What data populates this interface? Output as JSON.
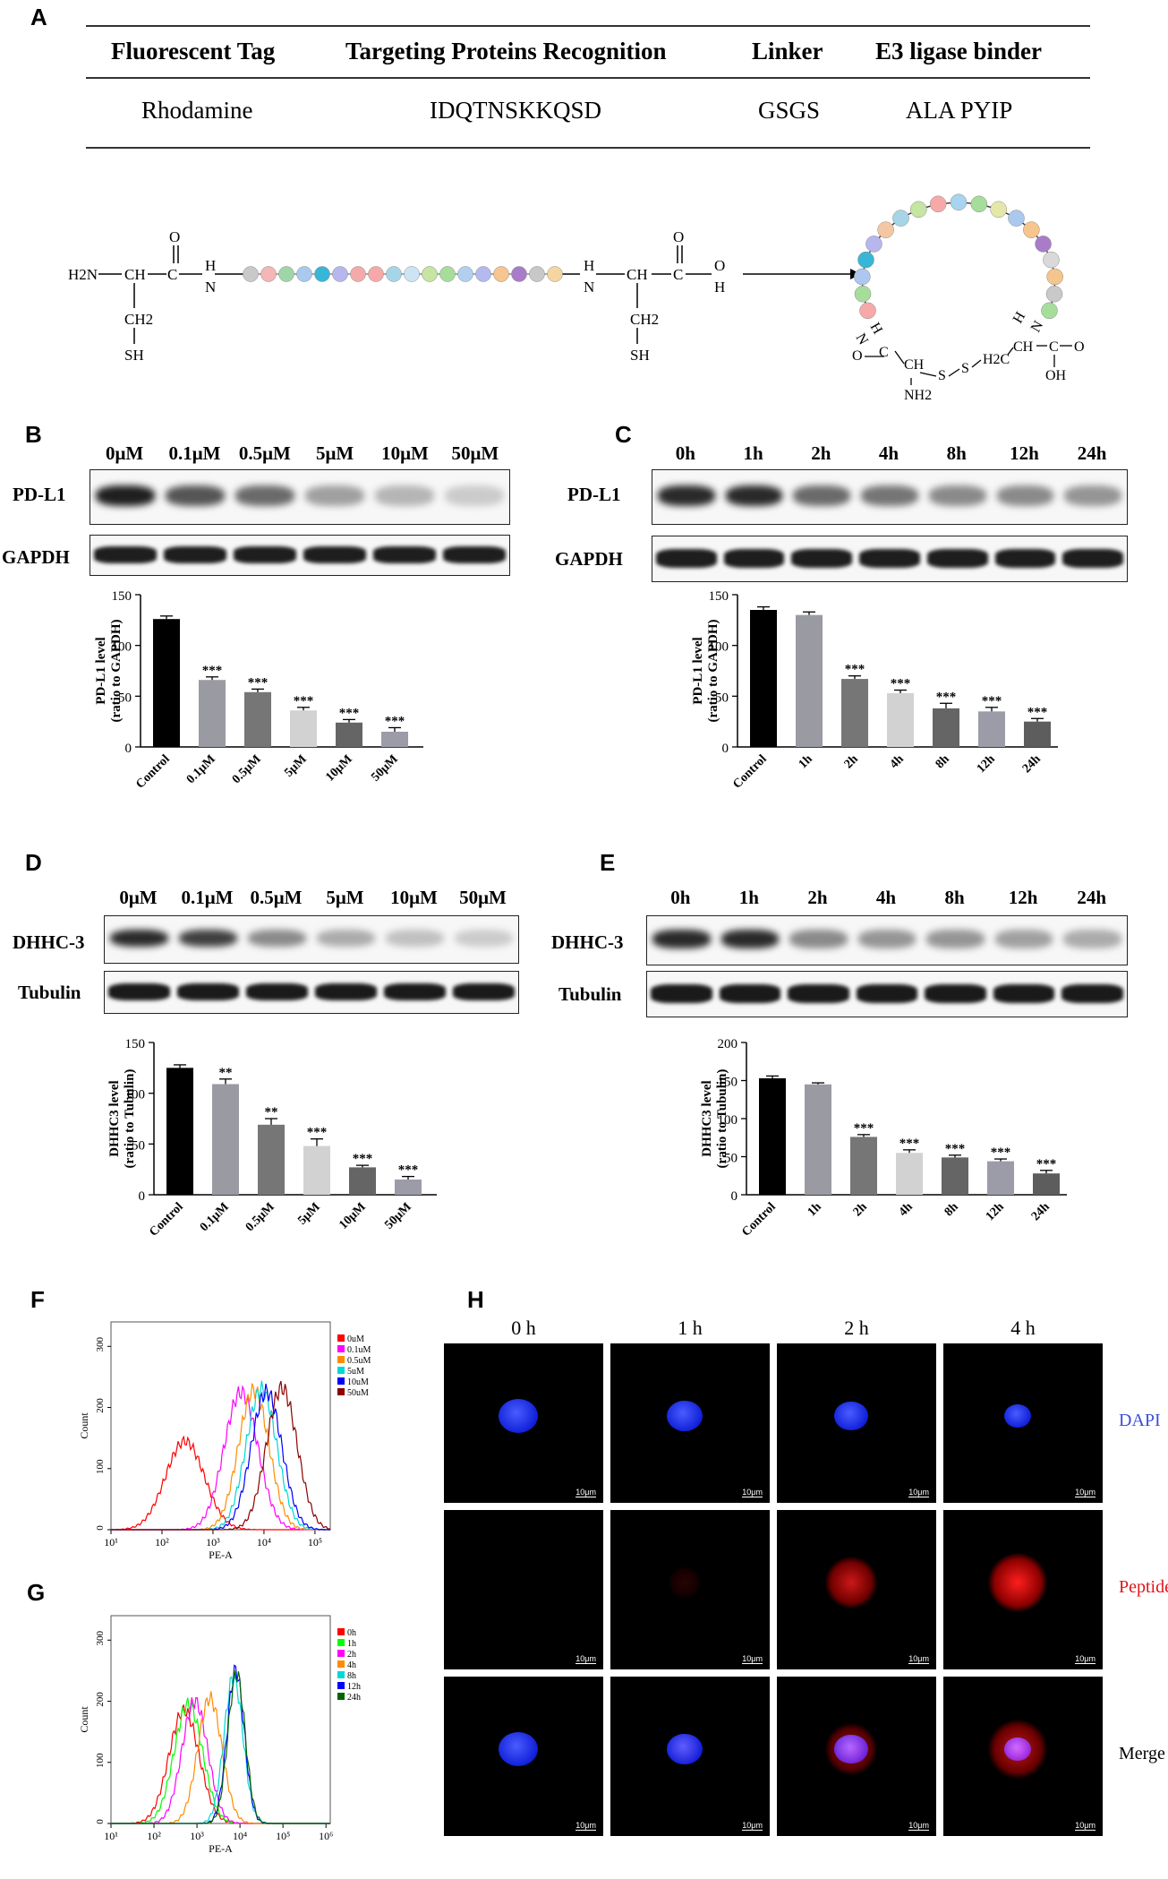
{
  "panel_labels": {
    "A": "A",
    "B": "B",
    "C": "C",
    "D": "D",
    "E": "E",
    "F": "F",
    "G": "G",
    "H": "H"
  },
  "table": {
    "headers": [
      "Fluorescent Tag",
      "Targeting Proteins Recognition",
      "Linker",
      "E3 ligase binder"
    ],
    "values": [
      "Rhodamine",
      "IDQTNSKKQSD",
      "GSGS",
      "ALA  PYIP"
    ]
  },
  "scheme": {
    "left_atoms": {
      "h2n": "H2N",
      "ch": "CH",
      "c": "C",
      "o": "O",
      "h": "H",
      "n": "N",
      "ch2": "CH2",
      "sh": "SH"
    },
    "right_atoms": {
      "h": "H",
      "n": "N",
      "ch": "CH",
      "c": "C",
      "o": "O",
      "oh_h": "H",
      "ch2": "CH2",
      "sh": "SH"
    },
    "cyclic_atoms": {
      "h1": "H",
      "n1": "N",
      "c1": "C",
      "o1": "O",
      "ch1": "CH",
      "nh2": "NH2",
      "s1": "S",
      "s2": "S",
      "h2c": "H2C",
      "ch2": "CH",
      "h2": "H",
      "n2": "N",
      "c2": "C",
      "o2": "O",
      "oh": "OH"
    },
    "bead_colors": [
      "#c9c9c9",
      "#f4b6b6",
      "#9fd6a8",
      "#a9c9ef",
      "#38b6d8",
      "#b7b7ee",
      "#f4aaaa",
      "#f7a9a9",
      "#a7d5e8",
      "#cde4f5",
      "#c6e4a2",
      "#a6dd9a",
      "#b1d0ef",
      "#b4b9f0",
      "#f7c58e",
      "#a87cc9",
      "#c8c8c8",
      "#f5d6a0"
    ],
    "ring_colors": [
      "#f7a9a9",
      "#a6dd9a",
      "#aec7f0",
      "#38b6d8",
      "#b7b7ee",
      "#f4c7a4",
      "#a7d5e8",
      "#c6e4a2",
      "#f7a9a9",
      "#a8d4ef",
      "#a6dd9a",
      "#e4e7a9",
      "#a9c9ef",
      "#f7c58e",
      "#a87cc9",
      "#d9d9d9",
      "#f5c58e",
      "#c9c9c9",
      "#a6dd9a"
    ]
  },
  "panel_B": {
    "lanes": [
      "0μM",
      "0.1μM",
      "0.5μM",
      "5μM",
      "10μM",
      "50μM"
    ],
    "rows": [
      "PD-L1",
      "GAPDH"
    ],
    "target_intensity": [
      0.95,
      0.7,
      0.6,
      0.35,
      0.25,
      0.15
    ]
  },
  "panel_C": {
    "lanes": [
      "0h",
      "1h",
      "2h",
      "4h",
      "8h",
      "12h",
      "24h"
    ],
    "rows": [
      "PD-L1",
      "GAPDH"
    ],
    "target_intensity": [
      0.9,
      0.9,
      0.6,
      0.55,
      0.45,
      0.45,
      0.4
    ]
  },
  "panel_D": {
    "lanes": [
      "0μM",
      "0.1μM",
      "0.5μM",
      "5μM",
      "10μM",
      "50μM"
    ],
    "rows": [
      "DHHC-3",
      "Tubulin"
    ],
    "target_intensity": [
      0.9,
      0.8,
      0.45,
      0.3,
      0.2,
      0.15
    ]
  },
  "panel_E": {
    "lanes": [
      "0h",
      "1h",
      "2h",
      "4h",
      "8h",
      "12h",
      "24h"
    ],
    "rows": [
      "DHHC-3",
      "Tubulin"
    ],
    "target_intensity": [
      0.9,
      0.9,
      0.45,
      0.4,
      0.4,
      0.35,
      0.3
    ]
  },
  "chart_data": [
    {
      "id": "B",
      "type": "bar",
      "categories": [
        "Control",
        "0.1μM",
        "0.5μM",
        "5μM",
        "10μM",
        "50μM"
      ],
      "values": [
        126,
        66,
        54,
        36,
        24,
        15
      ],
      "errors": [
        3,
        3,
        3,
        3,
        3,
        4
      ],
      "sig": [
        "",
        "***",
        "***",
        "***",
        "***",
        "***"
      ],
      "ylabel": "PD-L1 level\n(ratio to GAPDH)",
      "ylim": [
        0,
        150
      ],
      "yticks": [
        0,
        50,
        100,
        150
      ],
      "colors": [
        "#000000",
        "#9a9aa2",
        "#767676",
        "#d2d2d2",
        "#656565",
        "#9c9ca8"
      ]
    },
    {
      "id": "C",
      "type": "bar",
      "categories": [
        "Control",
        "1h",
        "2h",
        "4h",
        "8h",
        "12h",
        "24h"
      ],
      "values": [
        135,
        130,
        67,
        53,
        38,
        35,
        25
      ],
      "errors": [
        3,
        3,
        3,
        3,
        5,
        4,
        3
      ],
      "sig": [
        "",
        "",
        "***",
        "***",
        "***",
        "***",
        "***"
      ],
      "ylabel": "PD-L1 level\n(ratio to GAPDH)",
      "ylim": [
        0,
        150
      ],
      "yticks": [
        0,
        50,
        100,
        150
      ],
      "colors": [
        "#000000",
        "#9a9aa2",
        "#767676",
        "#d2d2d2",
        "#656565",
        "#9c9ca8",
        "#5d5d5d"
      ]
    },
    {
      "id": "D",
      "type": "bar",
      "categories": [
        "Control",
        "0.1μM",
        "0.5μM",
        "5μM",
        "10μM",
        "50μM"
      ],
      "values": [
        125,
        109,
        69,
        48,
        27,
        15
      ],
      "errors": [
        3,
        5,
        6,
        7,
        2,
        3
      ],
      "sig": [
        "",
        "**",
        "**",
        "***",
        "***",
        "***"
      ],
      "ylabel": "DHHC3 level\n(ratio to Tubulin)",
      "ylim": [
        0,
        150
      ],
      "yticks": [
        0,
        50,
        100,
        150
      ],
      "colors": [
        "#000000",
        "#9a9aa2",
        "#767676",
        "#d2d2d2",
        "#656565",
        "#9c9ca8"
      ]
    },
    {
      "id": "E",
      "type": "bar",
      "categories": [
        "Control",
        "1h",
        "2h",
        "4h",
        "8h",
        "12h",
        "24h"
      ],
      "values": [
        153,
        145,
        76,
        55,
        49,
        44,
        28
      ],
      "errors": [
        3,
        2,
        3,
        4,
        3,
        3,
        4
      ],
      "sig": [
        "",
        "",
        "***",
        "***",
        "***",
        "***",
        "***"
      ],
      "ylabel": "DHHC3 level\n(ratio to Tubulin)",
      "ylim": [
        0,
        200
      ],
      "yticks": [
        0,
        50,
        100,
        150,
        200
      ],
      "colors": [
        "#000000",
        "#9a9aa2",
        "#767676",
        "#d2d2d2",
        "#656565",
        "#9c9ca8",
        "#5d5d5d"
      ]
    },
    {
      "id": "F",
      "type": "area",
      "xlabel": "PE-A",
      "ylabel": "Count",
      "xticks": [
        "10¹",
        "10²",
        "10³",
        "10⁴",
        "10⁵"
      ],
      "yticks": [
        0,
        100,
        200,
        300
      ],
      "xlim_log": [
        1,
        5.3
      ],
      "ylim": [
        0,
        340
      ],
      "series": [
        {
          "name": "0uM",
          "color": "#ff0000",
          "peak_log": 2.45,
          "sd": 0.38,
          "height": 145
        },
        {
          "name": "0.1uM",
          "color": "#ff00ff",
          "peak_log": 3.55,
          "sd": 0.33,
          "height": 225
        },
        {
          "name": "0.5uM",
          "color": "#ff8c00",
          "peak_log": 3.8,
          "sd": 0.3,
          "height": 228
        },
        {
          "name": "5uM",
          "color": "#00d7d7",
          "peak_log": 3.95,
          "sd": 0.3,
          "height": 230
        },
        {
          "name": "10uM",
          "color": "#0000ff",
          "peak_log": 4.05,
          "sd": 0.3,
          "height": 226
        },
        {
          "name": "50uM",
          "color": "#8b0000",
          "peak_log": 4.35,
          "sd": 0.3,
          "height": 232
        }
      ]
    },
    {
      "id": "G",
      "type": "area",
      "xlabel": "PE-A",
      "ylabel": "Count",
      "xticks": [
        "10¹",
        "10²",
        "10³",
        "10⁴",
        "10⁵",
        "10⁶"
      ],
      "yticks": [
        0,
        100,
        200,
        300
      ],
      "xlim_log": [
        1,
        6.1
      ],
      "ylim": [
        0,
        340
      ],
      "series": [
        {
          "name": "0h",
          "color": "#ff0000",
          "peak_log": 2.7,
          "sd": 0.35,
          "height": 185
        },
        {
          "name": "1h",
          "color": "#00ff00",
          "peak_log": 2.8,
          "sd": 0.33,
          "height": 195
        },
        {
          "name": "2h",
          "color": "#ff00ff",
          "peak_log": 2.95,
          "sd": 0.3,
          "height": 200
        },
        {
          "name": "4h",
          "color": "#ff8c00",
          "peak_log": 3.3,
          "sd": 0.28,
          "height": 205
        },
        {
          "name": "8h",
          "color": "#00d7d7",
          "peak_log": 3.85,
          "sd": 0.22,
          "height": 240
        },
        {
          "name": "12h",
          "color": "#0000ff",
          "peak_log": 3.9,
          "sd": 0.2,
          "height": 250
        },
        {
          "name": "24h",
          "color": "#006400",
          "peak_log": 3.92,
          "sd": 0.2,
          "height": 245
        }
      ]
    }
  ],
  "panel_H": {
    "columns": [
      "0 h",
      "1 h",
      "2 h",
      "4 h"
    ],
    "channels": [
      "DAPI",
      "Peptide",
      "Merge"
    ],
    "channel_colors": [
      "#3a4fd6",
      "#e0141a",
      "#000000"
    ],
    "scale_bar": "10μm",
    "peptide_level": [
      0,
      0.15,
      0.8,
      1.0
    ],
    "nucleus_size": [
      1.0,
      0.9,
      0.85,
      0.7
    ]
  }
}
